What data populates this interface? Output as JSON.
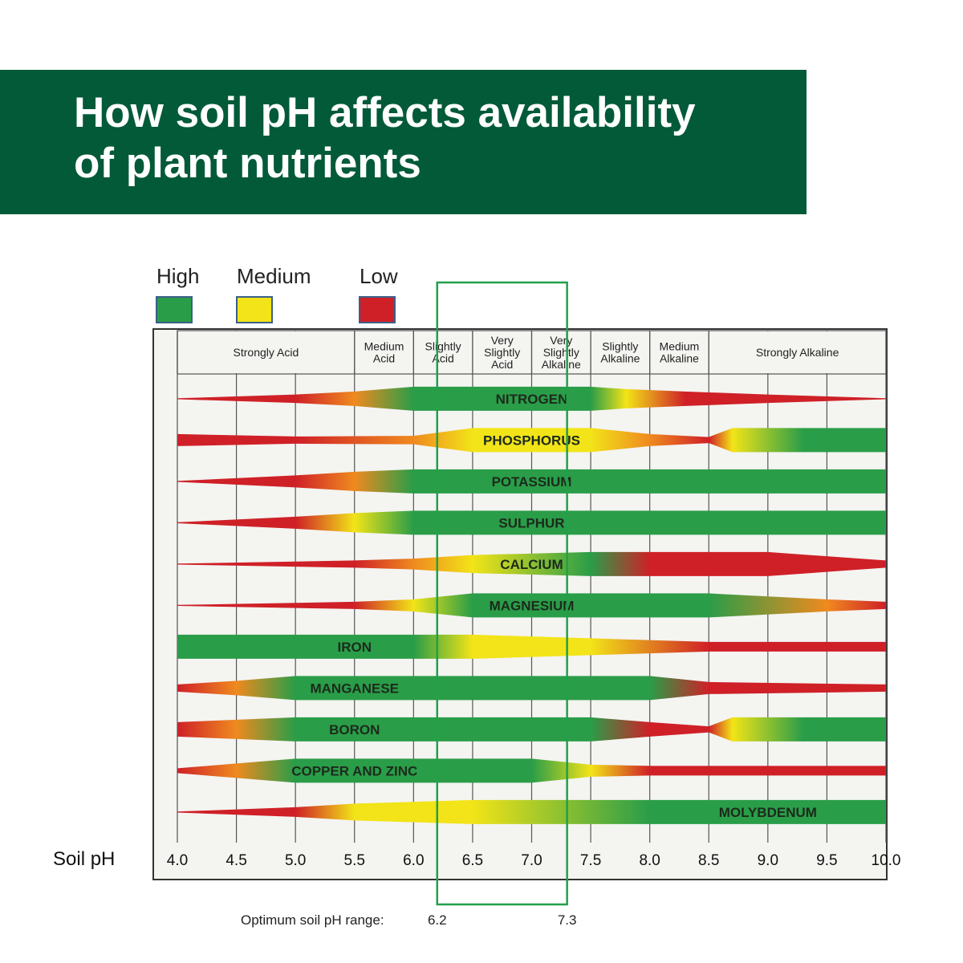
{
  "title": {
    "line1": "How soil pH affects availability",
    "line2": "of plant nutrients"
  },
  "legend": [
    {
      "label": "High",
      "color": "#2a9d48"
    },
    {
      "label": "Medium",
      "color": "#f2e418"
    },
    {
      "label": "Low",
      "color": "#cf2027"
    }
  ],
  "colors": {
    "high": "#2a9d48",
    "medium": "#f2e418",
    "low": "#cf2027",
    "orange": "#ef8a1f",
    "banner": "#025a38",
    "optimum_box": "#22a04b",
    "chart_bg": "#f4f4f1"
  },
  "chart_data": {
    "type": "heatmap",
    "title": "How soil pH affects availability of plant nutrients",
    "xlabel": "Soil pH",
    "xlim": [
      4.0,
      10.0
    ],
    "x_ticks": [
      "4.0",
      "4.5",
      "5.0",
      "5.5",
      "6.0",
      "6.5",
      "7.0",
      "7.5",
      "8.0",
      "8.5",
      "9.0",
      "9.5",
      "10.0"
    ],
    "ph_categories": [
      {
        "label": "Strongly Acid",
        "from": 4.0,
        "to": 5.5
      },
      {
        "label": "Medium Acid",
        "from": 5.5,
        "to": 6.0
      },
      {
        "label": "Slightly Acid",
        "from": 6.0,
        "to": 6.5
      },
      {
        "label": "Very Slightly Acid",
        "from": 6.5,
        "to": 7.0
      },
      {
        "label": "Very Slightly Alkaline",
        "from": 7.0,
        "to": 7.5
      },
      {
        "label": "Slightly Alkaline",
        "from": 7.5,
        "to": 8.0
      },
      {
        "label": "Medium Alkaline",
        "from": 8.0,
        "to": 8.5
      },
      {
        "label": "Strongly Alkaline",
        "from": 8.5,
        "to": 10.0
      }
    ],
    "availability_levels": [
      "High",
      "Medium",
      "Low"
    ],
    "optimum_range": {
      "label": "Optimum soil pH range:",
      "from": "6.2",
      "to": "7.3"
    },
    "nutrients": [
      {
        "name": "NITROGEN",
        "label_ph": 7.0,
        "profile": [
          [
            4.0,
            "low",
            0.0
          ],
          [
            5.0,
            "low",
            0.35
          ],
          [
            5.5,
            "orange",
            0.6
          ],
          [
            6.0,
            "high",
            1.0
          ],
          [
            7.5,
            "high",
            1.0
          ],
          [
            7.8,
            "medium",
            0.8
          ],
          [
            8.3,
            "low",
            0.6
          ],
          [
            9.0,
            "low",
            0.35
          ],
          [
            10.0,
            "low",
            0.0
          ]
        ]
      },
      {
        "name": "PHOSPHORUS",
        "label_ph": 7.0,
        "profile": [
          [
            4.0,
            "low",
            0.5
          ],
          [
            5.0,
            "low",
            0.3
          ],
          [
            6.0,
            "orange",
            0.35
          ],
          [
            6.5,
            "medium",
            1.0
          ],
          [
            7.5,
            "medium",
            1.0
          ],
          [
            8.0,
            "orange",
            0.5
          ],
          [
            8.5,
            "low",
            0.25
          ],
          [
            8.7,
            "medium",
            1.0
          ],
          [
            9.3,
            "high",
            1.0
          ],
          [
            10.0,
            "high",
            1.0
          ]
        ]
      },
      {
        "name": "POTASSIUM",
        "label_ph": 7.0,
        "profile": [
          [
            4.0,
            "low",
            0.0
          ],
          [
            5.0,
            "low",
            0.5
          ],
          [
            5.5,
            "orange",
            0.8
          ],
          [
            6.0,
            "high",
            1.0
          ],
          [
            10.0,
            "high",
            1.0
          ]
        ]
      },
      {
        "name": "SULPHUR",
        "label_ph": 7.0,
        "profile": [
          [
            4.0,
            "low",
            0.0
          ],
          [
            5.0,
            "low",
            0.5
          ],
          [
            5.5,
            "medium",
            0.8
          ],
          [
            6.0,
            "high",
            1.0
          ],
          [
            10.0,
            "high",
            1.0
          ]
        ]
      },
      {
        "name": "CALCIUM",
        "label_ph": 7.0,
        "profile": [
          [
            4.0,
            "low",
            0.0
          ],
          [
            5.5,
            "low",
            0.3
          ],
          [
            6.0,
            "orange",
            0.45
          ],
          [
            6.5,
            "medium",
            0.75
          ],
          [
            7.5,
            "high",
            1.0
          ],
          [
            8.0,
            "low",
            1.0
          ],
          [
            9.0,
            "low",
            1.0
          ],
          [
            10.0,
            "low",
            0.3
          ]
        ]
      },
      {
        "name": "MAGNESIUM",
        "label_ph": 7.0,
        "profile": [
          [
            4.0,
            "low",
            0.0
          ],
          [
            5.5,
            "low",
            0.3
          ],
          [
            6.0,
            "medium",
            0.5
          ],
          [
            6.5,
            "high",
            1.0
          ],
          [
            8.5,
            "high",
            1.0
          ],
          [
            9.5,
            "orange",
            0.5
          ],
          [
            10.0,
            "low",
            0.3
          ]
        ]
      },
      {
        "name": "IRON",
        "label_ph": 5.5,
        "profile": [
          [
            4.0,
            "high",
            1.0
          ],
          [
            6.0,
            "high",
            1.0
          ],
          [
            6.5,
            "medium",
            1.0
          ],
          [
            7.5,
            "medium",
            0.7
          ],
          [
            8.5,
            "low",
            0.4
          ],
          [
            10.0,
            "low",
            0.4
          ]
        ]
      },
      {
        "name": "MANGANESE",
        "label_ph": 5.5,
        "profile": [
          [
            4.0,
            "low",
            0.3
          ],
          [
            4.5,
            "orange",
            0.6
          ],
          [
            5.0,
            "high",
            1.0
          ],
          [
            8.0,
            "high",
            1.0
          ],
          [
            8.5,
            "low",
            0.5
          ],
          [
            10.0,
            "low",
            0.3
          ]
        ]
      },
      {
        "name": "BORON",
        "label_ph": 5.5,
        "profile": [
          [
            4.0,
            "low",
            0.6
          ],
          [
            4.5,
            "orange",
            0.8
          ],
          [
            5.0,
            "high",
            1.0
          ],
          [
            7.5,
            "high",
            1.0
          ],
          [
            8.0,
            "low",
            0.6
          ],
          [
            8.5,
            "low",
            0.25
          ],
          [
            8.7,
            "medium",
            1.0
          ],
          [
            9.3,
            "high",
            1.0
          ],
          [
            10.0,
            "high",
            1.0
          ]
        ]
      },
      {
        "name": "COPPER AND ZINC",
        "label_ph": 5.5,
        "profile": [
          [
            4.0,
            "low",
            0.2
          ],
          [
            4.5,
            "orange",
            0.6
          ],
          [
            5.0,
            "high",
            1.0
          ],
          [
            7.0,
            "high",
            1.0
          ],
          [
            7.5,
            "medium",
            0.5
          ],
          [
            8.0,
            "low",
            0.4
          ],
          [
            10.0,
            "low",
            0.4
          ]
        ]
      },
      {
        "name": "MOLYBDENUM",
        "label_ph": 9.0,
        "profile": [
          [
            4.0,
            "low",
            0.0
          ],
          [
            5.0,
            "low",
            0.4
          ],
          [
            5.5,
            "medium",
            0.7
          ],
          [
            6.5,
            "medium",
            1.0
          ],
          [
            8.0,
            "high",
            1.0
          ],
          [
            10.0,
            "high",
            1.0
          ]
        ]
      }
    ]
  }
}
